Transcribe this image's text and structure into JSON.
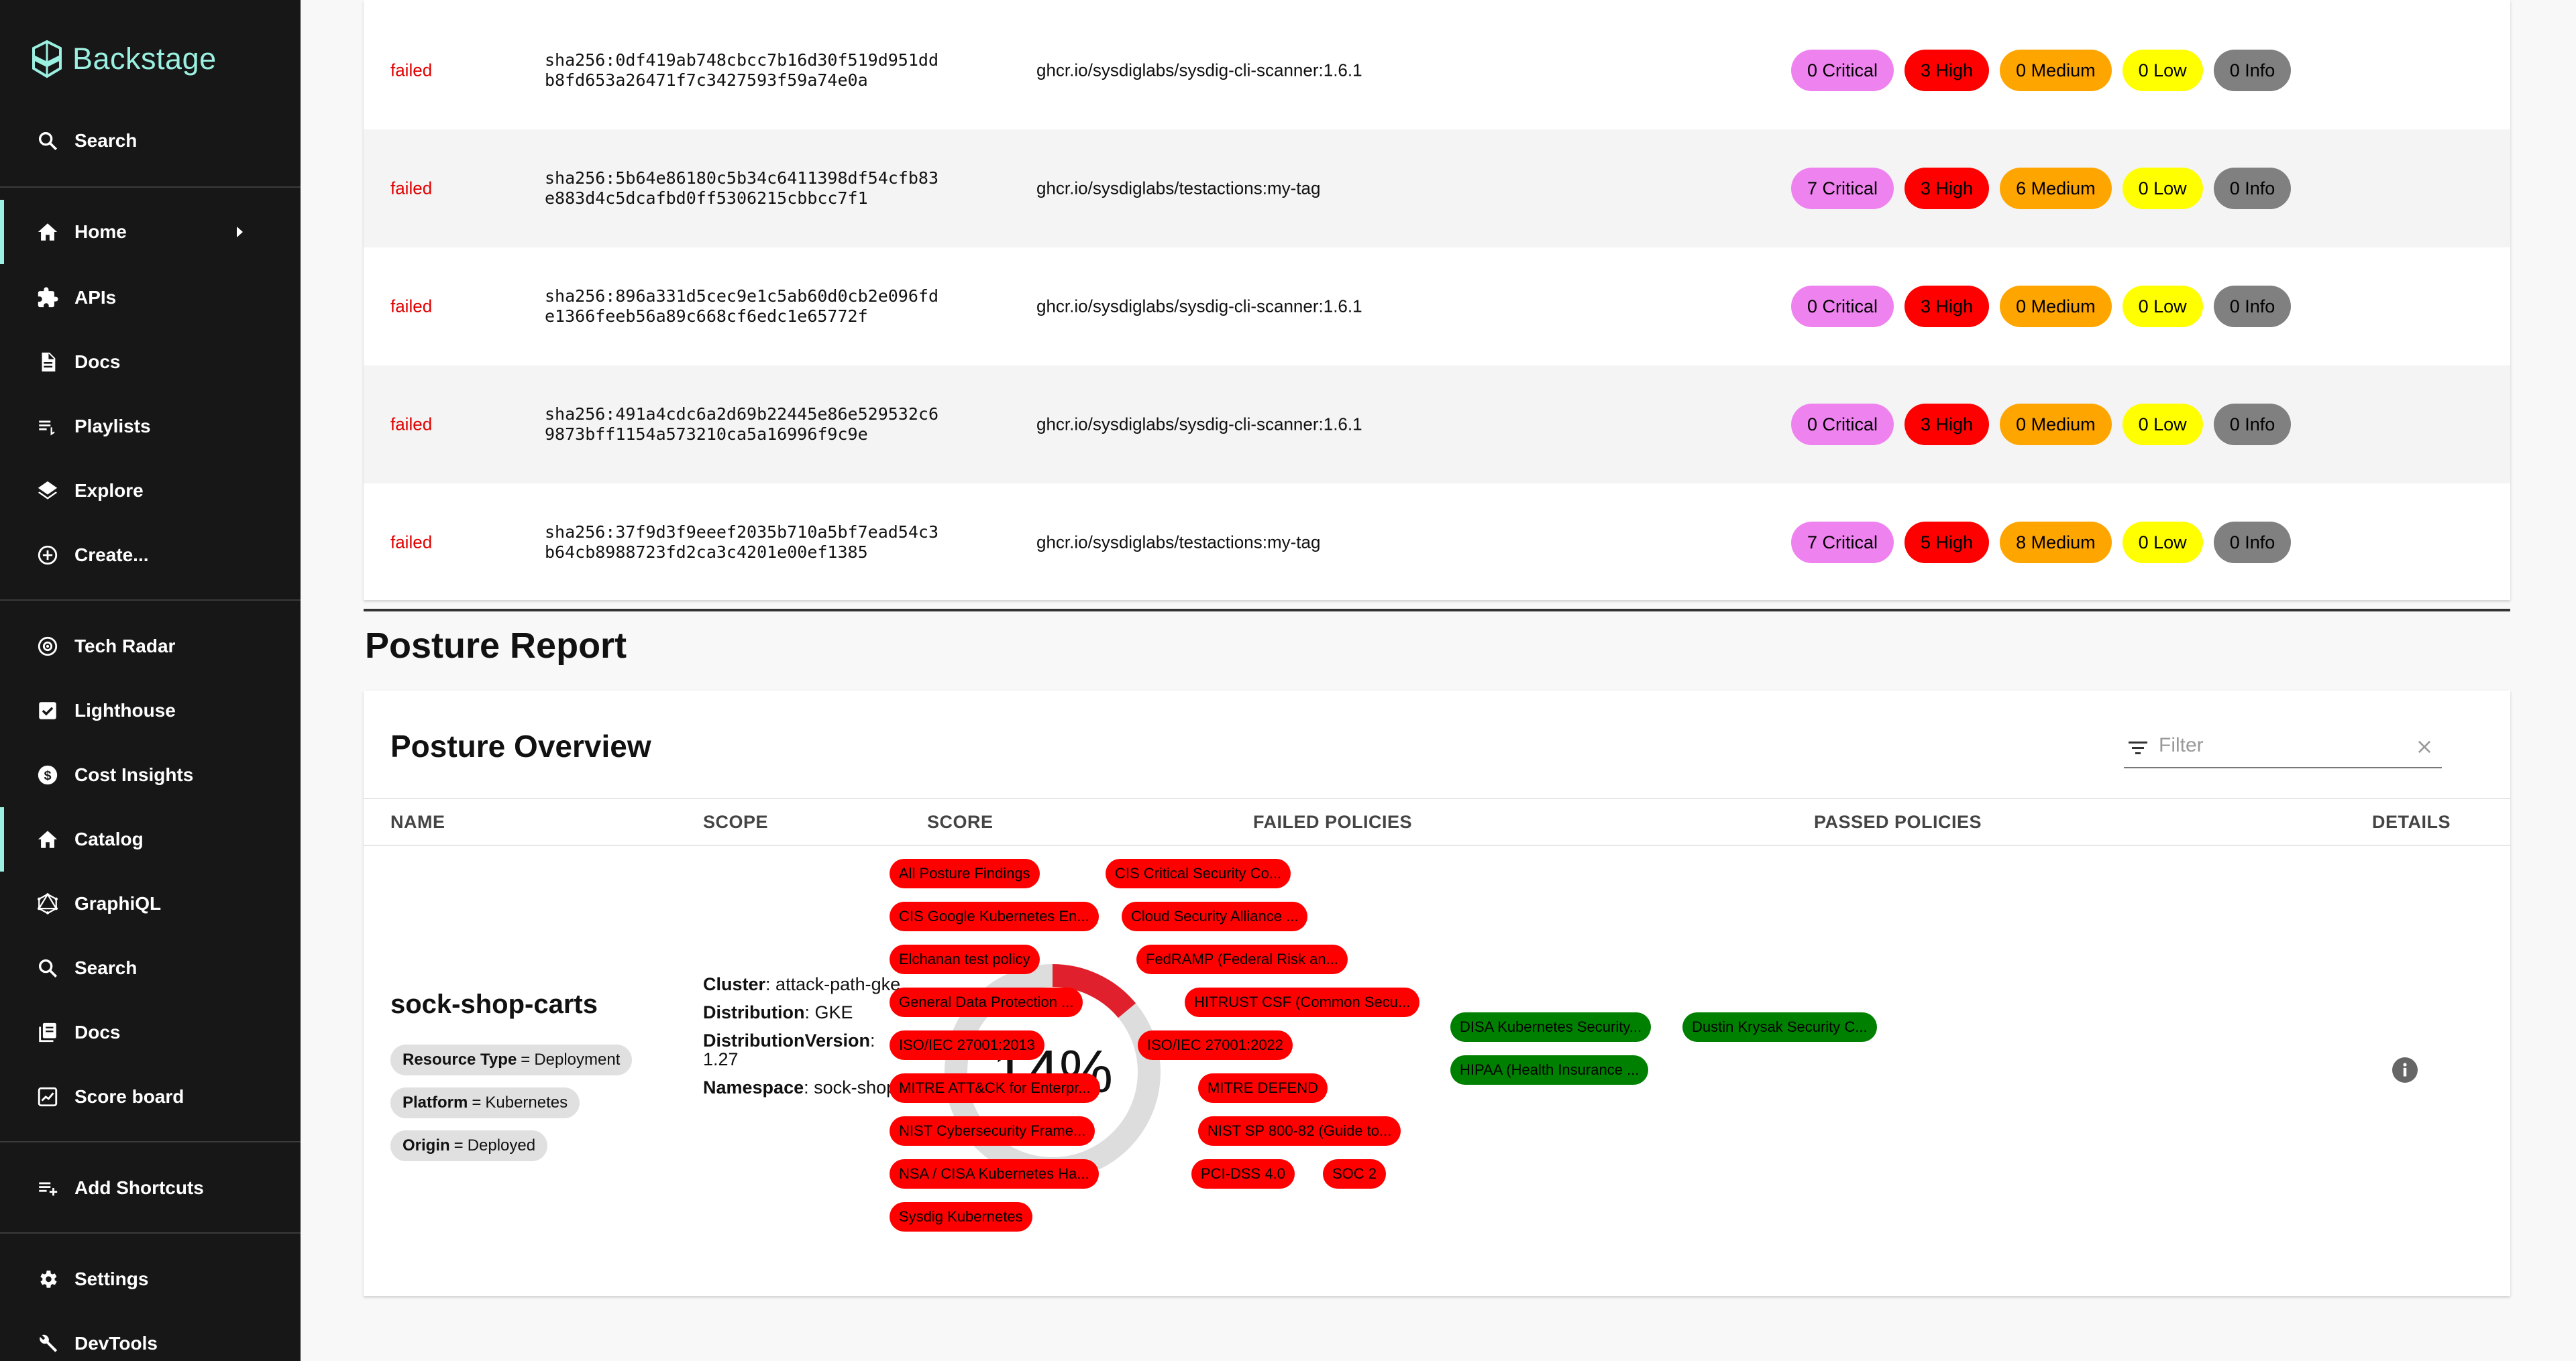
{
  "brand": {
    "name": "Backstage"
  },
  "sidebar": {
    "items": [
      {
        "label": "Search",
        "icon": "search-icon"
      },
      {
        "label": "Home",
        "icon": "home-icon"
      },
      {
        "label": "APIs",
        "icon": "puzzle-icon"
      },
      {
        "label": "Docs",
        "icon": "doc-icon"
      },
      {
        "label": "Playlists",
        "icon": "playlist-icon"
      },
      {
        "label": "Explore",
        "icon": "layers-icon"
      },
      {
        "label": "Create...",
        "icon": "add-circle-icon"
      },
      {
        "label": "Tech Radar",
        "icon": "radar-icon"
      },
      {
        "label": "Lighthouse",
        "icon": "checkbox-icon"
      },
      {
        "label": "Cost Insights",
        "icon": "money-icon"
      },
      {
        "label": "Catalog",
        "icon": "home-icon"
      },
      {
        "label": "GraphiQL",
        "icon": "graphql-icon"
      },
      {
        "label": "Search",
        "icon": "search-icon"
      },
      {
        "label": "Docs",
        "icon": "library-icon"
      },
      {
        "label": "Score board",
        "icon": "scoreboard-icon"
      },
      {
        "label": "Add Shortcuts",
        "icon": "playlist-add-icon"
      },
      {
        "label": "Settings",
        "icon": "gear-icon"
      },
      {
        "label": "DevTools",
        "icon": "wrench-icon"
      }
    ]
  },
  "scans": [
    {
      "status": "failed",
      "digest_line1": "sha256:0df419ab748cbcc7b16d30f519d951dd",
      "digest_line2": "b8fd653a26471f7c3427593f59a74e0a",
      "image": "ghcr.io/sysdiglabs/sysdig-cli-scanner:1.6.1",
      "critical": "0 Critical",
      "high": "3 High",
      "medium": "0 Medium",
      "low": "0 Low",
      "info": "0 Info"
    },
    {
      "status": "failed",
      "digest_line1": "sha256:5b64e86180c5b34c6411398df54cfb83",
      "digest_line2": "e883d4c5dcafbd0ff5306215cbbcc7f1",
      "image": "ghcr.io/sysdiglabs/testactions:my-tag",
      "critical": "7 Critical",
      "high": "3 High",
      "medium": "6 Medium",
      "low": "0 Low",
      "info": "0 Info"
    },
    {
      "status": "failed",
      "digest_line1": "sha256:896a331d5cec9e1c5ab60d0cb2e096fd",
      "digest_line2": "e1366feeb56a89c668cf6edc1e65772f",
      "image": "ghcr.io/sysdiglabs/sysdig-cli-scanner:1.6.1",
      "critical": "0 Critical",
      "high": "3 High",
      "medium": "0 Medium",
      "low": "0 Low",
      "info": "0 Info"
    },
    {
      "status": "failed",
      "digest_line1": "sha256:491a4cdc6a2d69b22445e86e529532c6",
      "digest_line2": "9873bff1154a573210ca5a16996f9c9e",
      "image": "ghcr.io/sysdiglabs/sysdig-cli-scanner:1.6.1",
      "critical": "0 Critical",
      "high": "3 High",
      "medium": "0 Medium",
      "low": "0 Low",
      "info": "0 Info"
    },
    {
      "status": "failed",
      "digest_line1": "sha256:37f9d3f9eeef2035b710a5bf7ead54c3",
      "digest_line2": "b64cb8988723fd2ca3c4201e00ef1385",
      "image": "ghcr.io/sysdiglabs/testactions:my-tag",
      "critical": "7 Critical",
      "high": "5 High",
      "medium": "8 Medium",
      "low": "0 Low",
      "info": "0 Info"
    }
  ],
  "posture": {
    "section_title": "Posture Report",
    "card_title": "Posture Overview",
    "filter_placeholder": "Filter",
    "columns": {
      "name": "NAME",
      "scope": "SCOPE",
      "score": "SCORE",
      "failed": "FAILED POLICIES",
      "passed": "PASSED POLICIES",
      "details": "DETAILS"
    },
    "row": {
      "name": "sock-shop-carts",
      "labels": [
        {
          "key": "Resource Type",
          "value": "Deployment"
        },
        {
          "key": "Platform",
          "value": "Kubernetes"
        },
        {
          "key": "Origin",
          "value": "Deployed"
        }
      ],
      "scope": {
        "cluster_label": "Cluster",
        "cluster": "attack-path-gke",
        "distribution_label": "Distribution",
        "distribution": "GKE",
        "version_label": "DistributionVersion",
        "version": "1.27",
        "namespace_label": "Namespace",
        "namespace": "sock-shop"
      },
      "score_text": "14%",
      "score_percent": 14,
      "failed_policies": [
        "All Posture Findings",
        "CIS Critical Security Co...",
        "CIS Google Kubernetes En...",
        "Cloud Security Alliance ...",
        "Elchanan test policy",
        "FedRAMP (Federal Risk an...",
        "General Data Protection ...",
        "HITRUST CSF (Common Secu...",
        "ISO/IEC 27001:2013",
        "ISO/IEC 27001:2022",
        "MITRE ATT&CK for Enterpr...",
        "MITRE DEFEND",
        "NIST Cybersecurity Frame...",
        "NIST SP 800-82 (Guide to...",
        "NSA / CISA Kubernetes Ha...",
        "PCI-DSS 4.0",
        "SOC 2",
        "Sysdig Kubernetes"
      ],
      "passed_policies": [
        "DISA Kubernetes Security...",
        "Dustin Krysak Security C...",
        "HIPAA (Health Insurance ..."
      ]
    }
  },
  "colors": {
    "sidebar_bg": "#171717",
    "brand_accent": "#9bf0e1",
    "status_failed": "#e00000",
    "critical": "#ee82ee",
    "high": "#ff0000",
    "medium": "#ffa500",
    "low": "#ffff00",
    "info": "#808080",
    "policy_failed": "#ff0000",
    "policy_passed": "#008000",
    "gauge_fill": "#e0202c",
    "gauge_track": "#dddddd"
  }
}
